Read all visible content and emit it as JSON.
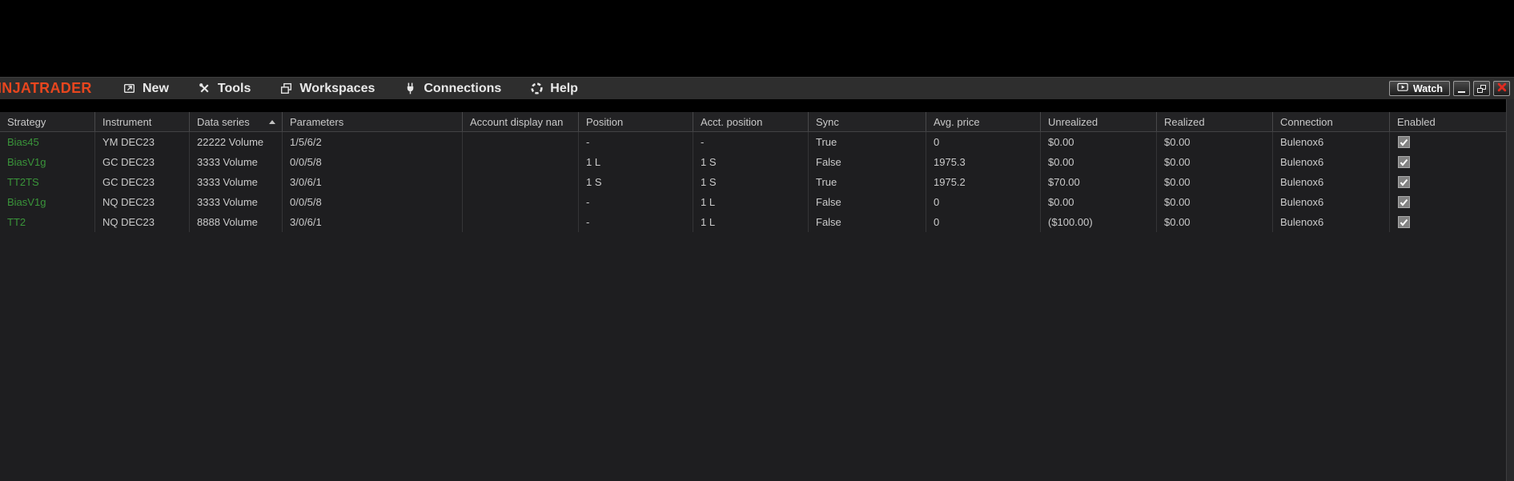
{
  "titlebar": {
    "logo_text": "INJATRADER",
    "menus": [
      {
        "label": "New",
        "icon": "new-window-icon"
      },
      {
        "label": "Tools",
        "icon": "tools-icon"
      },
      {
        "label": "Workspaces",
        "icon": "workspaces-icon"
      },
      {
        "label": "Connections",
        "icon": "plug-icon"
      },
      {
        "label": "Help",
        "icon": "help-icon"
      }
    ],
    "watch_button": {
      "label": "Watch",
      "icon": "tv-play-icon"
    },
    "window_controls": [
      {
        "name": "minimize"
      },
      {
        "name": "restore"
      },
      {
        "name": "close"
      }
    ]
  },
  "strategies_table": {
    "columns": [
      "Strategy",
      "Instrument",
      "Data series",
      "Parameters",
      "Account display nan",
      "Position",
      "Acct. position",
      "Sync",
      "Avg. price",
      "Unrealized",
      "Realized",
      "Connection",
      "Enabled"
    ],
    "sorted_column": "Data series",
    "sort_direction": "asc",
    "rows": [
      {
        "strategy": "Bias45",
        "instrument": "YM DEC23",
        "data_series": "22222 Volume",
        "parameters": "1/5/6/2",
        "account_display_name": "",
        "position": "-",
        "acct_position": "-",
        "sync": "True",
        "avg_price": "0",
        "unrealized": "$0.00",
        "realized": "$0.00",
        "connection": "Bulenox6",
        "enabled": true
      },
      {
        "strategy": "BiasV1g",
        "instrument": "GC DEC23",
        "data_series": "3333 Volume",
        "parameters": "0/0/5/8",
        "account_display_name": "",
        "position": "1 L",
        "acct_position": "1 S",
        "sync": "False",
        "avg_price": "1975.3",
        "unrealized": "$0.00",
        "realized": "$0.00",
        "connection": "Bulenox6",
        "enabled": true
      },
      {
        "strategy": "TT2TS",
        "instrument": "GC DEC23",
        "data_series": "3333 Volume",
        "parameters": "3/0/6/1",
        "account_display_name": "",
        "position": "1 S",
        "acct_position": "1 S",
        "sync": "True",
        "avg_price": "1975.2",
        "unrealized": "$70.00",
        "realized": "$0.00",
        "connection": "Bulenox6",
        "enabled": true
      },
      {
        "strategy": "BiasV1g",
        "instrument": "NQ DEC23",
        "data_series": "3333 Volume",
        "parameters": "0/0/5/8",
        "account_display_name": "",
        "position": "-",
        "acct_position": "1 L",
        "sync": "False",
        "avg_price": "0",
        "unrealized": "$0.00",
        "realized": "$0.00",
        "connection": "Bulenox6",
        "enabled": true
      },
      {
        "strategy": "TT2",
        "instrument": "NQ DEC23",
        "data_series": "8888 Volume",
        "parameters": "3/0/6/1",
        "account_display_name": "",
        "position": "-",
        "acct_position": "1 L",
        "sync": "False",
        "avg_price": "0",
        "unrealized": "($100.00)",
        "realized": "$0.00",
        "connection": "Bulenox6",
        "enabled": true
      }
    ]
  },
  "colors": {
    "accent_orange": "#e8461e",
    "strategy_green": "#3a953a",
    "close_red": "#df2b20",
    "menubar_bg": "#2e2e2e",
    "grid_bg": "#1e1e20",
    "text": "#cbcbcb"
  }
}
